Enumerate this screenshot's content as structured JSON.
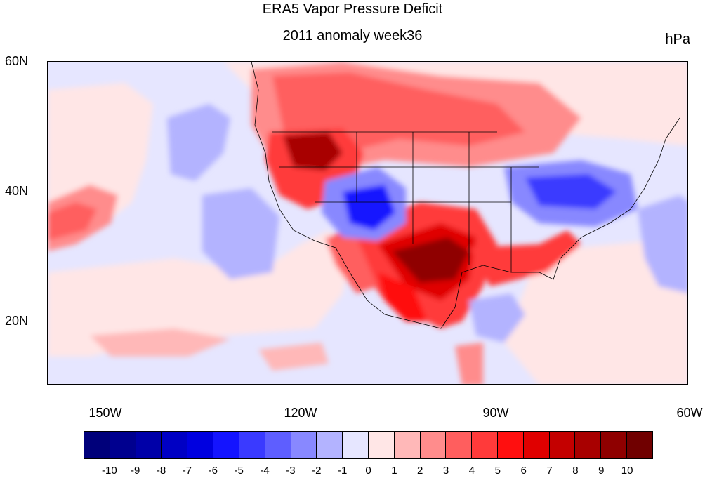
{
  "title": "ERA5 Vapor Pressure Deficit",
  "subtitle": "2011 anomaly week36",
  "units": "hPa",
  "lat_labels": [
    "60N",
    "40N",
    "20N"
  ],
  "lon_labels": [
    "150W",
    "120W",
    "90W",
    "60W"
  ],
  "colorbar": {
    "labels": [
      "-10",
      "-9",
      "-8",
      "-7",
      "-6",
      "-5",
      "-4",
      "-3",
      "-2",
      "-1",
      "0",
      "1",
      "2",
      "3",
      "4",
      "5",
      "6",
      "7",
      "8",
      "9",
      "10"
    ],
    "colors": [
      "#00007a",
      "#00008f",
      "#0000a8",
      "#0000c4",
      "#0000e0",
      "#1414ff",
      "#3a3aff",
      "#5e5eff",
      "#8888ff",
      "#b3b3ff",
      "#e6e6ff",
      "#ffe6e6",
      "#ffb8b8",
      "#ff8c8c",
      "#ff5e5e",
      "#ff3a3a",
      "#ff0f0f",
      "#e00000",
      "#c40000",
      "#a80000",
      "#8f0000",
      "#700000"
    ]
  },
  "map": {
    "features": [
      {
        "name": "us-southwest-red-anomaly",
        "value": 9
      },
      {
        "name": "pacific-northwest-red-anomaly",
        "value": 8
      },
      {
        "name": "canada-red-anomaly",
        "value": 4
      },
      {
        "name": "rockies-blue-anomaly",
        "value": -6
      },
      {
        "name": "northeast-us-blue-anomaly",
        "value": -5
      },
      {
        "name": "southeast-us-red-anomaly",
        "value": 5
      },
      {
        "name": "pacific-west-red-band",
        "value": 3
      },
      {
        "name": "pacific-light-blue-patch",
        "value": -2
      }
    ]
  }
}
